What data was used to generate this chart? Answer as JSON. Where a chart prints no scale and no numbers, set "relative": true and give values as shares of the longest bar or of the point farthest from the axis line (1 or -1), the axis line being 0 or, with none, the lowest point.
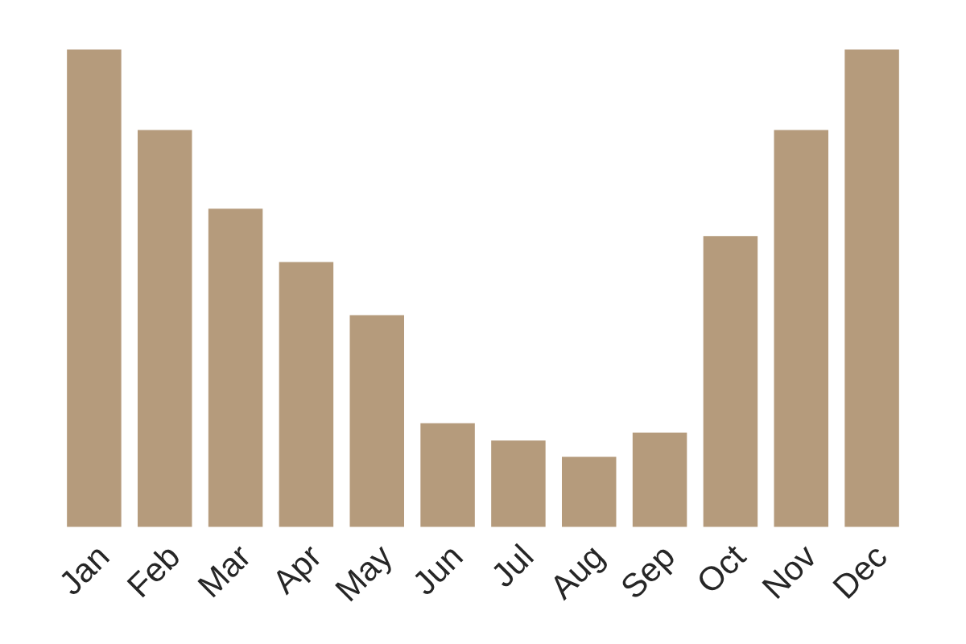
{
  "chart_data": {
    "type": "bar",
    "relative": true,
    "categories": [
      "Jan",
      "Feb",
      "Mar",
      "Apr",
      "May",
      "Jun",
      "Jul",
      "Aug",
      "Sep",
      "Oct",
      "Nov",
      "Dec"
    ],
    "values": [
      1,
      0.832,
      0.668,
      0.557,
      0.446,
      0.221,
      0.185,
      0.151,
      0.201,
      0.611,
      0.832,
      1
    ],
    "color": "#b59b7c",
    "grid": false,
    "legend": false
  }
}
